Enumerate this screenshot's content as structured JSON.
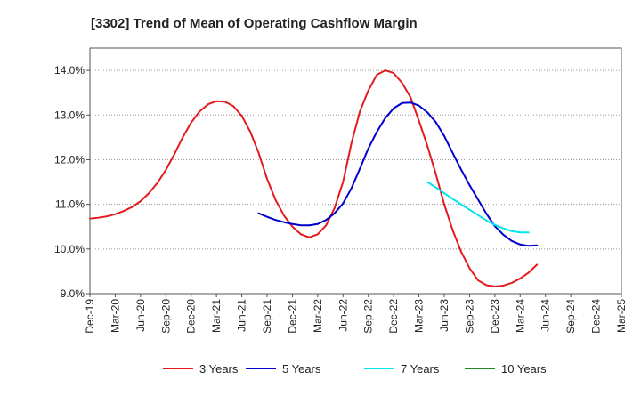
{
  "chart_data": {
    "type": "line",
    "title": "[3302]  Trend of Mean of Operating Cashflow Margin",
    "xlabel": "",
    "ylabel": "",
    "ylim": [
      9.0,
      14.5
    ],
    "y_ticks": [
      9.0,
      10.0,
      11.0,
      12.0,
      13.0,
      14.0
    ],
    "y_tick_labels": [
      "9.0%",
      "10.0%",
      "11.0%",
      "12.0%",
      "13.0%",
      "14.0%"
    ],
    "x_tick_labels": [
      "Dec-19",
      "Mar-20",
      "Jun-20",
      "Sep-20",
      "Dec-20",
      "Mar-21",
      "Jun-21",
      "Sep-21",
      "Dec-21",
      "Mar-22",
      "Jun-22",
      "Sep-22",
      "Dec-22",
      "Mar-23",
      "Jun-23",
      "Sep-23",
      "Dec-23",
      "Mar-24",
      "Jun-24",
      "Sep-24",
      "Dec-24",
      "Mar-25"
    ],
    "grid": true,
    "legend_position": "bottom",
    "series": [
      {
        "name": "3 Years",
        "color": "#e41a1c",
        "start_index": 0,
        "values": [
          10.68,
          10.7,
          10.73,
          10.78,
          10.85,
          10.94,
          11.07,
          11.25,
          11.48,
          11.77,
          12.12,
          12.5,
          12.83,
          13.08,
          13.24,
          13.31,
          13.3,
          13.2,
          12.98,
          12.63,
          12.15,
          11.57,
          11.1,
          10.75,
          10.5,
          10.33,
          10.26,
          10.33,
          10.53,
          10.92,
          11.5,
          12.37,
          13.08,
          13.55,
          13.9,
          14.0,
          13.94,
          13.72,
          13.4,
          12.87,
          12.31,
          11.68,
          11.0,
          10.42,
          9.94,
          9.57,
          9.3,
          9.19,
          9.16,
          9.18,
          9.24,
          9.34,
          9.47,
          9.65
        ]
      },
      {
        "name": "5 Years",
        "color": "#0000cc",
        "start_index": 20,
        "values": [
          10.8,
          10.72,
          10.65,
          10.6,
          10.56,
          10.53,
          10.53,
          10.56,
          10.65,
          10.8,
          11.02,
          11.36,
          11.8,
          12.25,
          12.62,
          12.93,
          13.15,
          13.27,
          13.28,
          13.21,
          13.06,
          12.84,
          12.53,
          12.15,
          11.78,
          11.43,
          11.11,
          10.79,
          10.51,
          10.32,
          10.18,
          10.1,
          10.07,
          10.08
        ]
      },
      {
        "name": "7 Years",
        "color": "#00e5ee",
        "start_index": 40,
        "values": [
          11.5,
          11.38,
          11.25,
          11.12,
          11.0,
          10.88,
          10.76,
          10.64,
          10.54,
          10.46,
          10.4,
          10.37,
          10.37
        ]
      },
      {
        "name": "10 Years",
        "color": "#228b22",
        "start_index": 0,
        "values": []
      }
    ]
  }
}
